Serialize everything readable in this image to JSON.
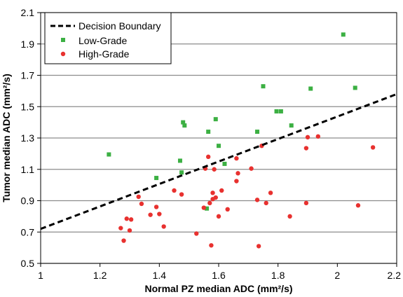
{
  "chart_data": {
    "type": "scatter",
    "xlabel": "Normal PZ median ADC (mm²/s)",
    "ylabel": "Tumor median ADC (mm²/s)",
    "xlim": [
      1,
      2.2
    ],
    "ylim": [
      0.5,
      2.1
    ],
    "x_ticks": [
      "1",
      "1.2",
      "1.4",
      "1.6",
      "1.8",
      "2",
      "2.2"
    ],
    "y_ticks": [
      "0.5",
      "0.7",
      "0.9",
      "1.1",
      "1.3",
      "1.5",
      "1.7",
      "1.9",
      "2.1"
    ],
    "grid": "horizontal",
    "legend_position": "top-left",
    "decision_boundary": {
      "name": "Decision Boundary",
      "x": [
        1,
        2.2
      ],
      "y": [
        0.72,
        1.58
      ],
      "color": "#000000"
    },
    "series": [
      {
        "name": "Low-Grade",
        "color": "#3cb043",
        "marker": "square",
        "points": [
          [
            1.23,
            1.195
          ],
          [
            1.39,
            1.045
          ],
          [
            1.47,
            1.155
          ],
          [
            1.475,
            1.08
          ],
          [
            1.48,
            1.4
          ],
          [
            1.485,
            1.38
          ],
          [
            1.56,
            0.85
          ],
          [
            1.565,
            1.34
          ],
          [
            1.59,
            1.42
          ],
          [
            1.6,
            1.25
          ],
          [
            1.62,
            1.135
          ],
          [
            1.73,
            1.34
          ],
          [
            1.75,
            1.63
          ],
          [
            1.795,
            1.47
          ],
          [
            1.81,
            1.47
          ],
          [
            1.845,
            1.38
          ],
          [
            1.91,
            1.615
          ],
          [
            2.02,
            1.96
          ],
          [
            2.06,
            1.62
          ]
        ]
      },
      {
        "name": "High-Grade",
        "color": "#e8312f",
        "marker": "circle",
        "points": [
          [
            1.27,
            0.725
          ],
          [
            1.28,
            0.645
          ],
          [
            1.29,
            0.785
          ],
          [
            1.3,
            0.71
          ],
          [
            1.305,
            0.78
          ],
          [
            1.33,
            0.925
          ],
          [
            1.34,
            0.88
          ],
          [
            1.37,
            0.81
          ],
          [
            1.39,
            0.86
          ],
          [
            1.4,
            0.815
          ],
          [
            1.415,
            0.735
          ],
          [
            1.45,
            0.965
          ],
          [
            1.475,
            0.94
          ],
          [
            1.525,
            0.69
          ],
          [
            1.55,
            0.855
          ],
          [
            1.555,
            1.105
          ],
          [
            1.565,
            1.18
          ],
          [
            1.57,
            0.885
          ],
          [
            1.575,
            0.615
          ],
          [
            1.58,
            0.95
          ],
          [
            1.58,
            0.91
          ],
          [
            1.585,
            1.1
          ],
          [
            1.59,
            0.92
          ],
          [
            1.6,
            0.8
          ],
          [
            1.61,
            0.965
          ],
          [
            1.63,
            0.845
          ],
          [
            1.66,
            1.17
          ],
          [
            1.66,
            1.025
          ],
          [
            1.665,
            1.075
          ],
          [
            1.71,
            1.105
          ],
          [
            1.73,
            0.905
          ],
          [
            1.735,
            0.61
          ],
          [
            1.745,
            1.25
          ],
          [
            1.76,
            0.885
          ],
          [
            1.775,
            0.95
          ],
          [
            1.84,
            0.8
          ],
          [
            1.895,
            0.885
          ],
          [
            1.895,
            1.235
          ],
          [
            1.9,
            1.305
          ],
          [
            1.935,
            1.31
          ],
          [
            2.07,
            0.87
          ],
          [
            2.12,
            1.24
          ]
        ]
      }
    ]
  }
}
